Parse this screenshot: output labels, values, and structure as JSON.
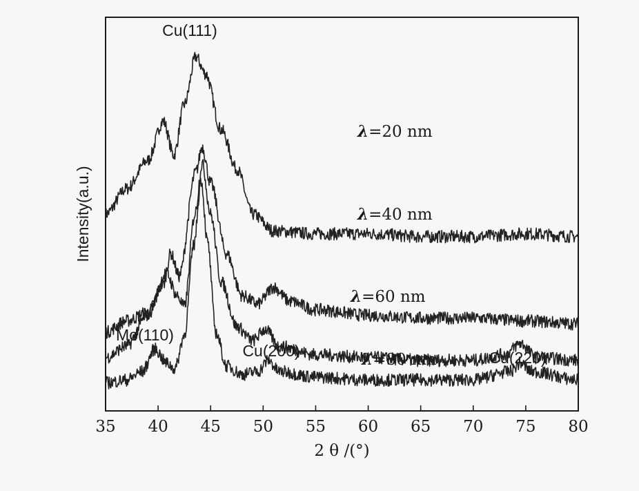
{
  "chart_data": {
    "type": "line",
    "title": "",
    "xlabel": "2 θ /(°)",
    "ylabel": "Intensity(a.u.)",
    "xlim": [
      35,
      80
    ],
    "x_ticks": [
      35,
      40,
      45,
      50,
      55,
      60,
      65,
      70,
      75,
      80
    ],
    "grid": false,
    "legend": "none",
    "line_color": "#222222",
    "series": [
      {
        "name": "λ=20 nm",
        "baseline": 0.29,
        "points": [
          [
            35,
            0.62
          ],
          [
            37,
            0.71
          ],
          [
            39,
            0.81
          ],
          [
            40.5,
            0.95
          ],
          [
            41.5,
            0.83
          ],
          [
            42.5,
            1.01
          ],
          [
            43.6,
            1.18
          ],
          [
            44.5,
            1.12
          ],
          [
            46,
            0.92
          ],
          [
            47.5,
            0.78
          ],
          [
            49,
            0.62
          ],
          [
            51,
            0.56
          ],
          [
            55,
            0.55
          ],
          [
            60,
            0.55
          ],
          [
            65,
            0.54
          ],
          [
            70,
            0.54
          ],
          [
            75,
            0.55
          ],
          [
            80,
            0.54
          ]
        ]
      },
      {
        "name": "λ=40 nm",
        "baseline": 0.2,
        "points": [
          [
            35,
            0.2
          ],
          [
            37,
            0.24
          ],
          [
            39,
            0.27
          ],
          [
            40.5,
            0.37
          ],
          [
            41.2,
            0.48
          ],
          [
            42,
            0.4
          ],
          [
            43.6,
            0.77
          ],
          [
            44.2,
            0.86
          ],
          [
            45,
            0.73
          ],
          [
            46.5,
            0.48
          ],
          [
            48,
            0.33
          ],
          [
            49.5,
            0.3
          ],
          [
            51,
            0.36
          ],
          [
            52.5,
            0.31
          ],
          [
            55,
            0.28
          ],
          [
            60,
            0.26
          ],
          [
            65,
            0.25
          ],
          [
            70,
            0.25
          ],
          [
            75,
            0.24
          ],
          [
            80,
            0.23
          ]
        ]
      },
      {
        "name": "λ=60 nm",
        "baseline": 0.07,
        "points": [
          [
            35,
            0.11
          ],
          [
            37,
            0.15
          ],
          [
            39,
            0.26
          ],
          [
            40.8,
            0.41
          ],
          [
            41.8,
            0.33
          ],
          [
            42.5,
            0.29
          ],
          [
            43.5,
            0.62
          ],
          [
            44.2,
            0.8
          ],
          [
            45,
            0.62
          ],
          [
            46,
            0.38
          ],
          [
            47.5,
            0.22
          ],
          [
            49,
            0.17
          ],
          [
            50.2,
            0.21
          ],
          [
            51.5,
            0.15
          ],
          [
            55,
            0.12
          ],
          [
            60,
            0.11
          ],
          [
            65,
            0.1
          ],
          [
            70,
            0.1
          ],
          [
            73,
            0.12
          ],
          [
            74.5,
            0.16
          ],
          [
            76,
            0.11
          ],
          [
            80,
            0.1
          ]
        ]
      },
      {
        "name": "λ=80 nm",
        "baseline": 0.0,
        "points": [
          [
            35,
            0.02
          ],
          [
            37,
            0.03
          ],
          [
            38.5,
            0.06
          ],
          [
            39.7,
            0.14
          ],
          [
            40.8,
            0.09
          ],
          [
            41.6,
            0.07
          ],
          [
            42.5,
            0.19
          ],
          [
            43.4,
            0.51
          ],
          [
            44.1,
            0.74
          ],
          [
            44.7,
            0.52
          ],
          [
            45.5,
            0.2
          ],
          [
            46.5,
            0.08
          ],
          [
            48,
            0.05
          ],
          [
            49.5,
            0.06
          ],
          [
            50.5,
            0.1
          ],
          [
            51.5,
            0.06
          ],
          [
            55,
            0.04
          ],
          [
            60,
            0.03
          ],
          [
            65,
            0.03
          ],
          [
            70,
            0.03
          ],
          [
            73.5,
            0.06
          ],
          [
            74.5,
            0.09
          ],
          [
            75.5,
            0.06
          ],
          [
            80,
            0.03
          ]
        ]
      }
    ],
    "annotations": [
      {
        "text": "Cu(111)",
        "x": 43.4,
        "y": 1.27
      },
      {
        "text": "Mo(110)",
        "x": 39.7,
        "y": 0.19
      },
      {
        "text": "Cu(200)",
        "x": 50.4,
        "y": 0.14
      },
      {
        "text": "Cu(220)",
        "x": 75,
        "y": 0.14
      }
    ]
  }
}
